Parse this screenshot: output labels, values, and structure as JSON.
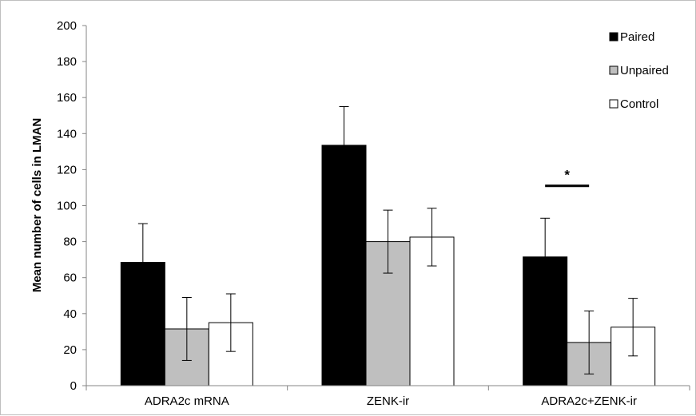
{
  "chart_data": {
    "type": "bar",
    "ylabel": "Mean number of cells in LMAN",
    "xlabel": "",
    "ylim": [
      0,
      200
    ],
    "yticks": [
      0,
      20,
      40,
      60,
      80,
      100,
      120,
      140,
      160,
      180,
      200
    ],
    "categories": [
      "ADRA2c mRNA",
      "ZENK-ir",
      "ADRA2c+ZENK-ir"
    ],
    "series": [
      {
        "name": "Paired",
        "color": "#000000",
        "values": [
          68.5,
          133.5,
          71.5
        ],
        "errors": [
          21.5,
          21.5,
          21.5
        ]
      },
      {
        "name": "Unpaired",
        "color": "#bfbfbf",
        "values": [
          31.5,
          80,
          24
        ],
        "errors": [
          17.5,
          17.5,
          17.5
        ]
      },
      {
        "name": "Control",
        "color": "#ffffff",
        "values": [
          35,
          82.5,
          32.5
        ],
        "errors": [
          16,
          16,
          16
        ]
      }
    ],
    "legend_position": "top-right",
    "annotations": [
      {
        "text": "*",
        "category": "ADRA2c+ZENK-ir",
        "value": 111
      }
    ]
  }
}
